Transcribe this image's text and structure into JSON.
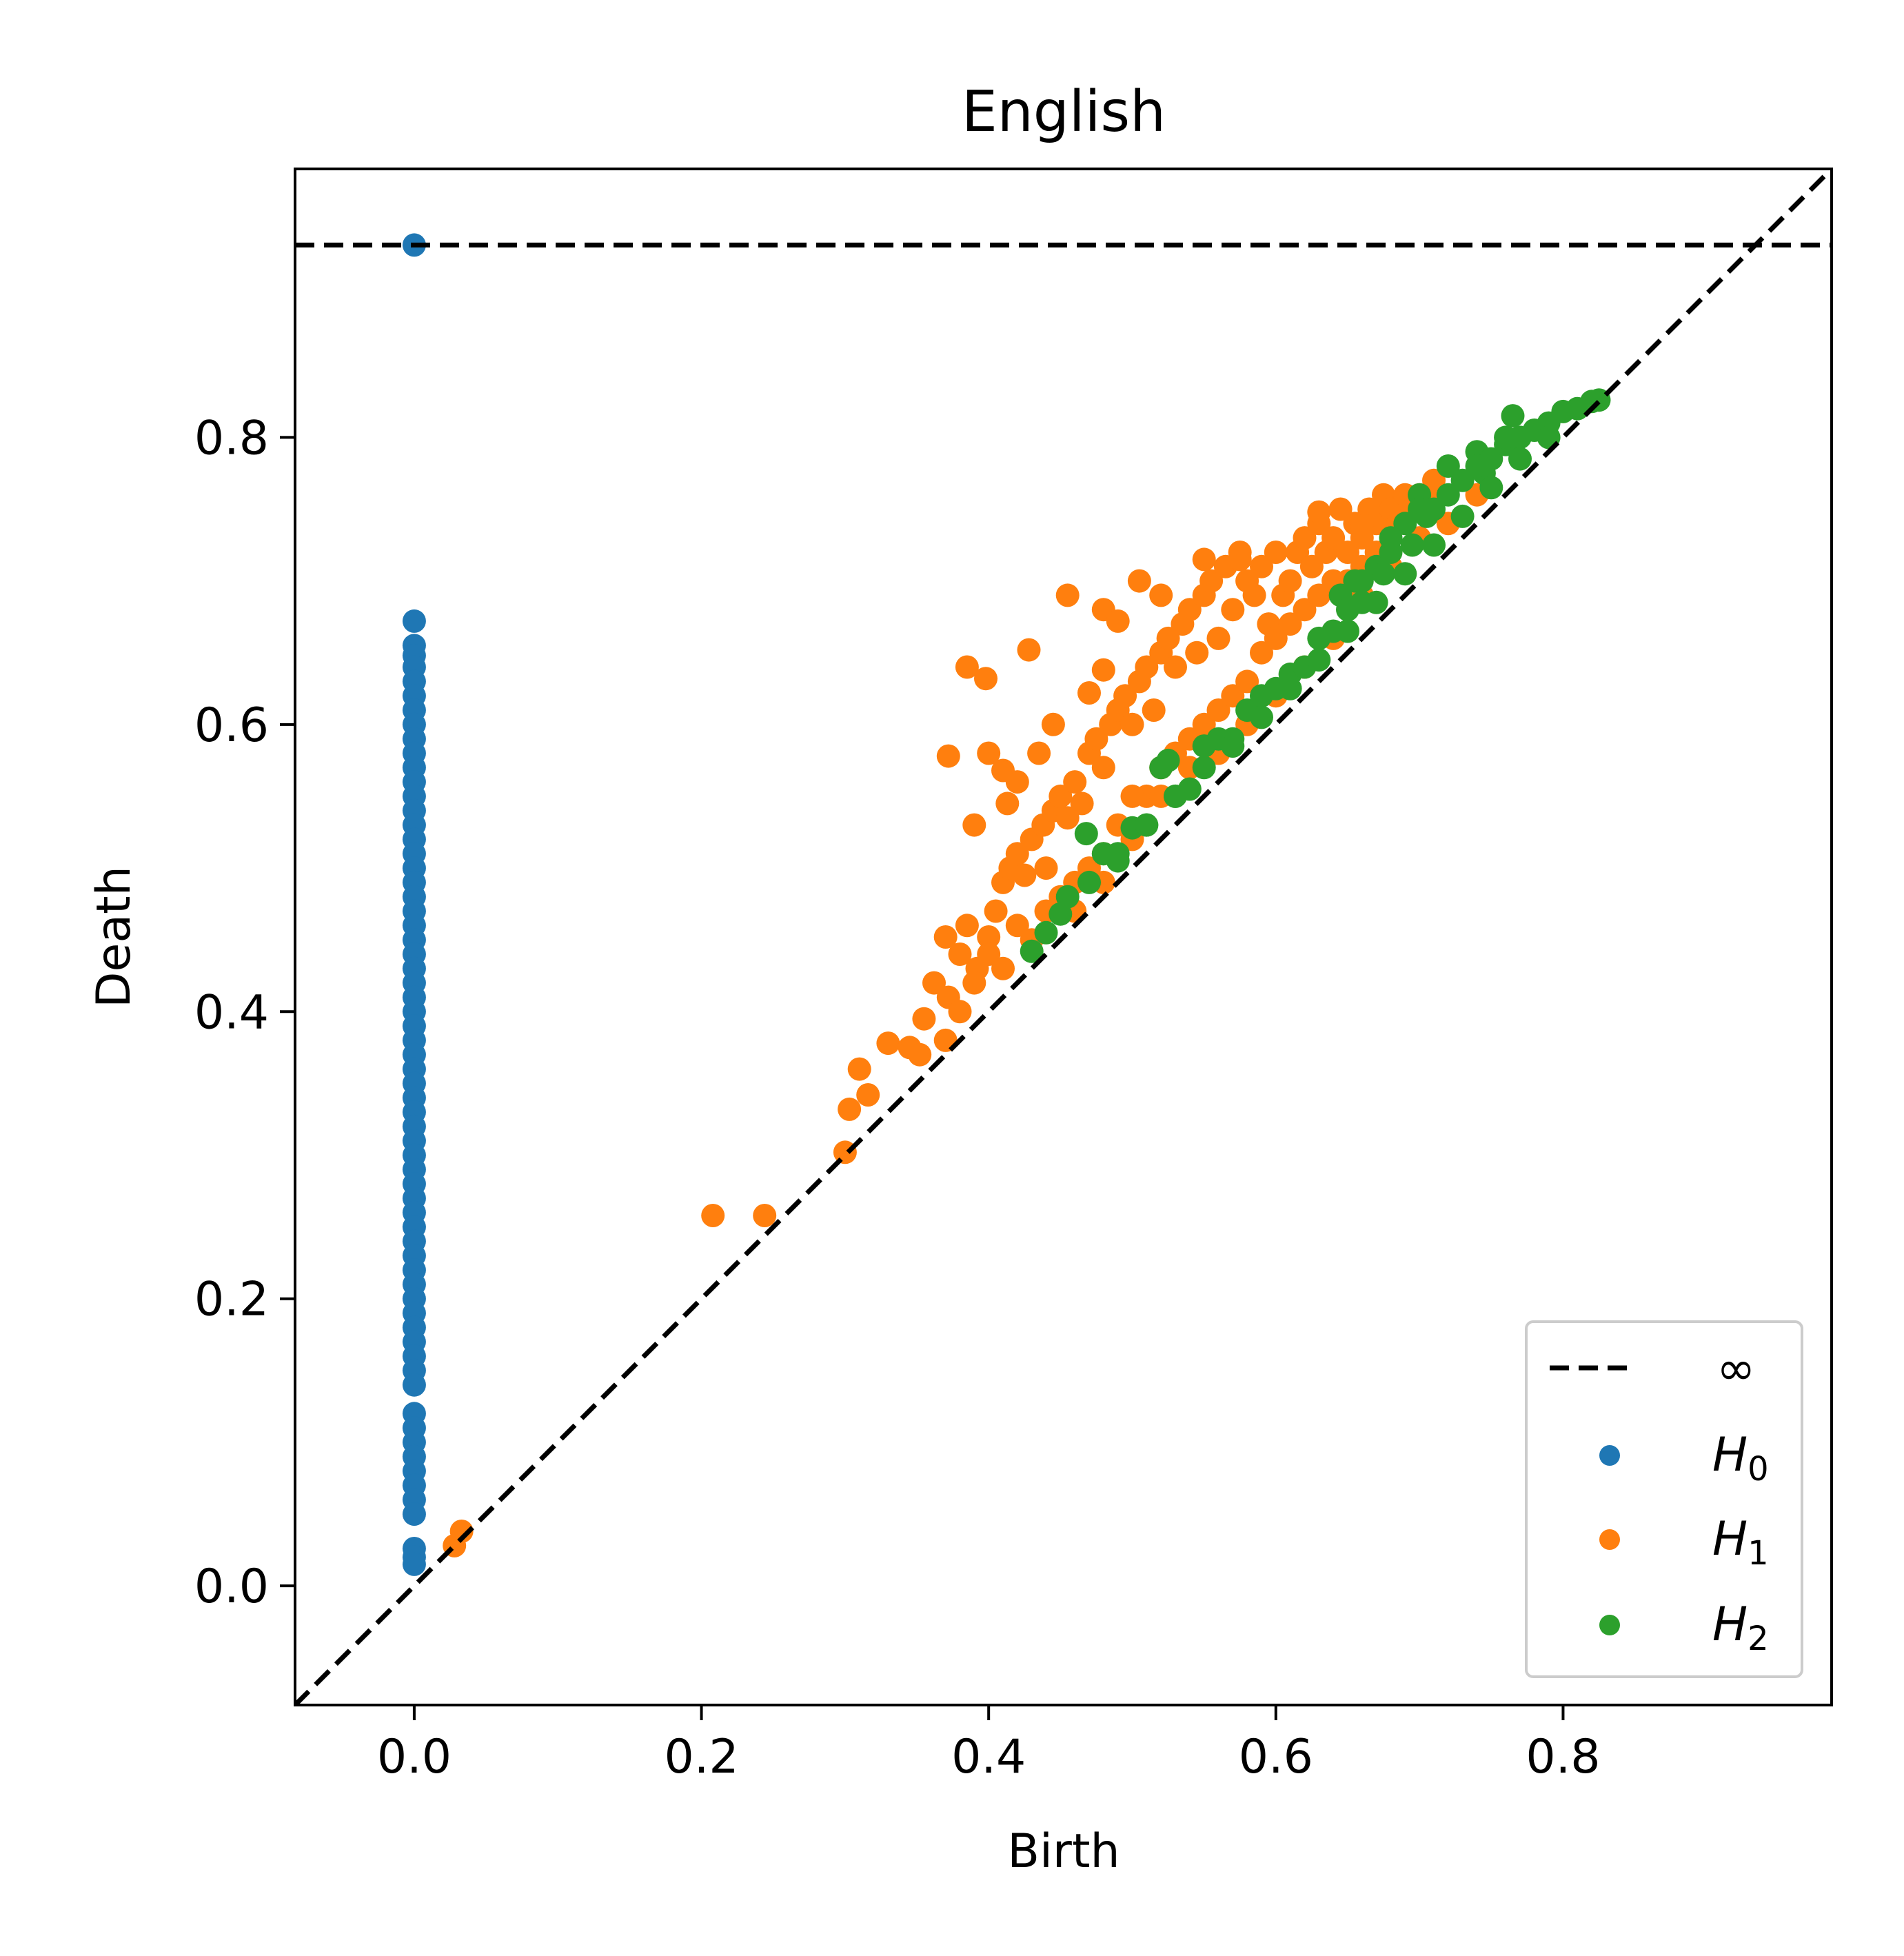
{
  "chart_data": {
    "type": "scatter",
    "title": "English",
    "xlabel": "Birth",
    "ylabel": "Death",
    "xlim": [
      -0.083,
      0.987
    ],
    "ylim": [
      -0.083,
      0.987
    ],
    "xticks": [
      0.0,
      0.2,
      0.4,
      0.6,
      0.8
    ],
    "yticks": [
      0.0,
      0.2,
      0.4,
      0.6,
      0.8
    ],
    "xtick_labels": [
      "0.0",
      "0.2",
      "0.4",
      "0.6",
      "0.8"
    ],
    "ytick_labels": [
      "0.0",
      "0.2",
      "0.4",
      "0.6",
      "0.8"
    ],
    "grid": false,
    "legend_position": "lower-right",
    "infinity_line_y": 0.934,
    "legend": [
      {
        "label": "∞",
        "kind": "dashed-line",
        "color": "#000000"
      },
      {
        "label": "H",
        "subscript": "0",
        "kind": "point",
        "color": "#1f77b4"
      },
      {
        "label": "H",
        "subscript": "1",
        "kind": "point",
        "color": "#ff7f0e"
      },
      {
        "label": "H",
        "subscript": "2",
        "kind": "point",
        "color": "#2ca02c"
      }
    ],
    "series": [
      {
        "name": "H0",
        "color": "#1f77b4",
        "points": [
          [
            0,
            0.934
          ],
          [
            0,
            0.672
          ],
          [
            0,
            0.655
          ],
          [
            0,
            0.648
          ],
          [
            0,
            0.64
          ],
          [
            0,
            0.63
          ],
          [
            0,
            0.62
          ],
          [
            0,
            0.61
          ],
          [
            0,
            0.6
          ],
          [
            0,
            0.59
          ],
          [
            0,
            0.58
          ],
          [
            0,
            0.57
          ],
          [
            0,
            0.56
          ],
          [
            0,
            0.55
          ],
          [
            0,
            0.54
          ],
          [
            0,
            0.53
          ],
          [
            0,
            0.52
          ],
          [
            0,
            0.51
          ],
          [
            0,
            0.5
          ],
          [
            0,
            0.49
          ],
          [
            0,
            0.48
          ],
          [
            0,
            0.47
          ],
          [
            0,
            0.46
          ],
          [
            0,
            0.45
          ],
          [
            0,
            0.44
          ],
          [
            0,
            0.43
          ],
          [
            0,
            0.42
          ],
          [
            0,
            0.41
          ],
          [
            0,
            0.4
          ],
          [
            0,
            0.39
          ],
          [
            0,
            0.38
          ],
          [
            0,
            0.37
          ],
          [
            0,
            0.36
          ],
          [
            0,
            0.35
          ],
          [
            0,
            0.34
          ],
          [
            0,
            0.33
          ],
          [
            0,
            0.32
          ],
          [
            0,
            0.31
          ],
          [
            0,
            0.3
          ],
          [
            0,
            0.29
          ],
          [
            0,
            0.28
          ],
          [
            0,
            0.27
          ],
          [
            0,
            0.26
          ],
          [
            0,
            0.25
          ],
          [
            0,
            0.24
          ],
          [
            0,
            0.23
          ],
          [
            0,
            0.22
          ],
          [
            0,
            0.21
          ],
          [
            0,
            0.2
          ],
          [
            0,
            0.19
          ],
          [
            0,
            0.18
          ],
          [
            0,
            0.17
          ],
          [
            0,
            0.16
          ],
          [
            0,
            0.15
          ],
          [
            0,
            0.14
          ],
          [
            0,
            0.12
          ],
          [
            0,
            0.11
          ],
          [
            0,
            0.1
          ],
          [
            0,
            0.09
          ],
          [
            0,
            0.08
          ],
          [
            0,
            0.07
          ],
          [
            0,
            0.06
          ],
          [
            0,
            0.05
          ],
          [
            0,
            0.026
          ],
          [
            0,
            0.02
          ],
          [
            0,
            0.015
          ]
        ]
      },
      {
        "name": "H1",
        "color": "#ff7f0e",
        "points": [
          [
            0.028,
            0.028
          ],
          [
            0.033,
            0.038
          ],
          [
            0.208,
            0.258
          ],
          [
            0.244,
            0.258
          ],
          [
            0.3,
            0.302
          ],
          [
            0.31,
            0.36
          ],
          [
            0.303,
            0.332
          ],
          [
            0.316,
            0.342
          ],
          [
            0.33,
            0.378
          ],
          [
            0.345,
            0.375
          ],
          [
            0.352,
            0.37
          ],
          [
            0.37,
            0.38
          ],
          [
            0.355,
            0.395
          ],
          [
            0.362,
            0.42
          ],
          [
            0.372,
            0.41
          ],
          [
            0.37,
            0.452
          ],
          [
            0.38,
            0.44
          ],
          [
            0.385,
            0.46
          ],
          [
            0.392,
            0.43
          ],
          [
            0.4,
            0.452
          ],
          [
            0.405,
            0.47
          ],
          [
            0.41,
            0.49
          ],
          [
            0.415,
            0.5
          ],
          [
            0.42,
            0.51
          ],
          [
            0.425,
            0.495
          ],
          [
            0.43,
            0.52
          ],
          [
            0.438,
            0.53
          ],
          [
            0.445,
            0.54
          ],
          [
            0.45,
            0.55
          ],
          [
            0.455,
            0.535
          ],
          [
            0.46,
            0.56
          ],
          [
            0.465,
            0.545
          ],
          [
            0.47,
            0.58
          ],
          [
            0.475,
            0.59
          ],
          [
            0.48,
            0.57
          ],
          [
            0.485,
            0.6
          ],
          [
            0.49,
            0.61
          ],
          [
            0.495,
            0.62
          ],
          [
            0.5,
            0.6
          ],
          [
            0.505,
            0.63
          ],
          [
            0.51,
            0.64
          ],
          [
            0.515,
            0.61
          ],
          [
            0.52,
            0.65
          ],
          [
            0.525,
            0.66
          ],
          [
            0.53,
            0.64
          ],
          [
            0.535,
            0.67
          ],
          [
            0.54,
            0.68
          ],
          [
            0.545,
            0.65
          ],
          [
            0.55,
            0.69
          ],
          [
            0.555,
            0.7
          ],
          [
            0.56,
            0.66
          ],
          [
            0.565,
            0.71
          ],
          [
            0.57,
            0.68
          ],
          [
            0.575,
            0.72
          ],
          [
            0.58,
            0.7
          ],
          [
            0.585,
            0.69
          ],
          [
            0.59,
            0.71
          ],
          [
            0.595,
            0.67
          ],
          [
            0.6,
            0.72
          ],
          [
            0.605,
            0.69
          ],
          [
            0.61,
            0.7
          ],
          [
            0.615,
            0.72
          ],
          [
            0.62,
            0.73
          ],
          [
            0.625,
            0.71
          ],
          [
            0.63,
            0.74
          ],
          [
            0.635,
            0.72
          ],
          [
            0.64,
            0.73
          ],
          [
            0.645,
            0.75
          ],
          [
            0.65,
            0.72
          ],
          [
            0.655,
            0.74
          ],
          [
            0.66,
            0.73
          ],
          [
            0.665,
            0.75
          ],
          [
            0.67,
            0.74
          ],
          [
            0.675,
            0.76
          ],
          [
            0.68,
            0.75
          ],
          [
            0.685,
            0.74
          ],
          [
            0.69,
            0.76
          ],
          [
            0.695,
            0.75
          ],
          [
            0.7,
            0.76
          ],
          [
            0.71,
            0.77
          ],
          [
            0.372,
            0.578
          ],
          [
            0.385,
            0.64
          ],
          [
            0.398,
            0.632
          ],
          [
            0.39,
            0.53
          ],
          [
            0.41,
            0.568
          ],
          [
            0.413,
            0.545
          ],
          [
            0.428,
            0.652
          ],
          [
            0.455,
            0.69
          ],
          [
            0.48,
            0.68
          ],
          [
            0.505,
            0.7
          ],
          [
            0.48,
            0.638
          ],
          [
            0.47,
            0.622
          ],
          [
            0.49,
            0.672
          ],
          [
            0.52,
            0.69
          ],
          [
            0.55,
            0.715
          ],
          [
            0.575,
            0.715
          ],
          [
            0.63,
            0.748
          ],
          [
            0.66,
            0.738
          ],
          [
            0.705,
            0.758
          ],
          [
            0.4,
            0.58
          ],
          [
            0.42,
            0.56
          ],
          [
            0.435,
            0.58
          ],
          [
            0.44,
            0.5
          ],
          [
            0.445,
            0.6
          ],
          [
            0.45,
            0.47
          ],
          [
            0.46,
            0.49
          ],
          [
            0.48,
            0.51
          ],
          [
            0.49,
            0.53
          ],
          [
            0.5,
            0.52
          ],
          [
            0.51,
            0.55
          ],
          [
            0.52,
            0.57
          ],
          [
            0.53,
            0.58
          ],
          [
            0.54,
            0.59
          ],
          [
            0.55,
            0.6
          ],
          [
            0.56,
            0.61
          ],
          [
            0.57,
            0.62
          ],
          [
            0.58,
            0.63
          ],
          [
            0.59,
            0.65
          ],
          [
            0.6,
            0.66
          ],
          [
            0.61,
            0.67
          ],
          [
            0.62,
            0.68
          ],
          [
            0.63,
            0.69
          ],
          [
            0.64,
            0.7
          ],
          [
            0.65,
            0.7
          ],
          [
            0.66,
            0.71
          ],
          [
            0.67,
            0.72
          ],
          [
            0.38,
            0.4
          ],
          [
            0.39,
            0.42
          ],
          [
            0.4,
            0.44
          ],
          [
            0.41,
            0.43
          ],
          [
            0.42,
            0.46
          ],
          [
            0.43,
            0.45
          ],
          [
            0.44,
            0.47
          ],
          [
            0.45,
            0.48
          ],
          [
            0.46,
            0.47
          ],
          [
            0.47,
            0.5
          ],
          [
            0.48,
            0.49
          ],
          [
            0.5,
            0.55
          ],
          [
            0.52,
            0.55
          ],
          [
            0.54,
            0.57
          ],
          [
            0.56,
            0.58
          ],
          [
            0.58,
            0.6
          ],
          [
            0.6,
            0.62
          ],
          [
            0.62,
            0.64
          ],
          [
            0.64,
            0.66
          ],
          [
            0.66,
            0.69
          ],
          [
            0.68,
            0.71
          ],
          [
            0.7,
            0.73
          ],
          [
            0.72,
            0.74
          ],
          [
            0.74,
            0.76
          ]
        ]
      },
      {
        "name": "H2",
        "color": "#2ca02c",
        "points": [
          [
            0.43,
            0.442
          ],
          [
            0.44,
            0.455
          ],
          [
            0.45,
            0.468
          ],
          [
            0.455,
            0.48
          ],
          [
            0.468,
            0.524
          ],
          [
            0.48,
            0.51
          ],
          [
            0.49,
            0.505
          ],
          [
            0.5,
            0.528
          ],
          [
            0.51,
            0.53
          ],
          [
            0.52,
            0.57
          ],
          [
            0.525,
            0.575
          ],
          [
            0.53,
            0.55
          ],
          [
            0.54,
            0.555
          ],
          [
            0.55,
            0.585
          ],
          [
            0.56,
            0.59
          ],
          [
            0.57,
            0.59
          ],
          [
            0.58,
            0.61
          ],
          [
            0.59,
            0.62
          ],
          [
            0.6,
            0.625
          ],
          [
            0.61,
            0.635
          ],
          [
            0.62,
            0.64
          ],
          [
            0.63,
            0.66
          ],
          [
            0.64,
            0.665
          ],
          [
            0.645,
            0.69
          ],
          [
            0.65,
            0.68
          ],
          [
            0.655,
            0.7
          ],
          [
            0.66,
            0.685
          ],
          [
            0.67,
            0.71
          ],
          [
            0.675,
            0.705
          ],
          [
            0.68,
            0.72
          ],
          [
            0.69,
            0.74
          ],
          [
            0.695,
            0.725
          ],
          [
            0.7,
            0.76
          ],
          [
            0.705,
            0.745
          ],
          [
            0.71,
            0.75
          ],
          [
            0.72,
            0.76
          ],
          [
            0.73,
            0.77
          ],
          [
            0.74,
            0.79
          ],
          [
            0.745,
            0.775
          ],
          [
            0.75,
            0.785
          ],
          [
            0.76,
            0.795
          ],
          [
            0.765,
            0.815
          ],
          [
            0.77,
            0.8
          ],
          [
            0.78,
            0.805
          ],
          [
            0.79,
            0.81
          ],
          [
            0.8,
            0.818
          ],
          [
            0.81,
            0.82
          ],
          [
            0.82,
            0.825
          ],
          [
            0.825,
            0.826
          ],
          [
            0.47,
            0.49
          ],
          [
            0.49,
            0.51
          ],
          [
            0.51,
            0.53
          ],
          [
            0.53,
            0.55
          ],
          [
            0.55,
            0.57
          ],
          [
            0.57,
            0.585
          ],
          [
            0.59,
            0.605
          ],
          [
            0.61,
            0.625
          ],
          [
            0.63,
            0.645
          ],
          [
            0.65,
            0.665
          ],
          [
            0.67,
            0.685
          ],
          [
            0.69,
            0.705
          ],
          [
            0.71,
            0.725
          ],
          [
            0.73,
            0.745
          ],
          [
            0.75,
            0.765
          ],
          [
            0.77,
            0.785
          ],
          [
            0.79,
            0.8
          ],
          [
            0.66,
            0.7
          ],
          [
            0.68,
            0.73
          ],
          [
            0.7,
            0.75
          ],
          [
            0.72,
            0.78
          ],
          [
            0.74,
            0.78
          ],
          [
            0.76,
            0.8
          ]
        ]
      }
    ]
  }
}
